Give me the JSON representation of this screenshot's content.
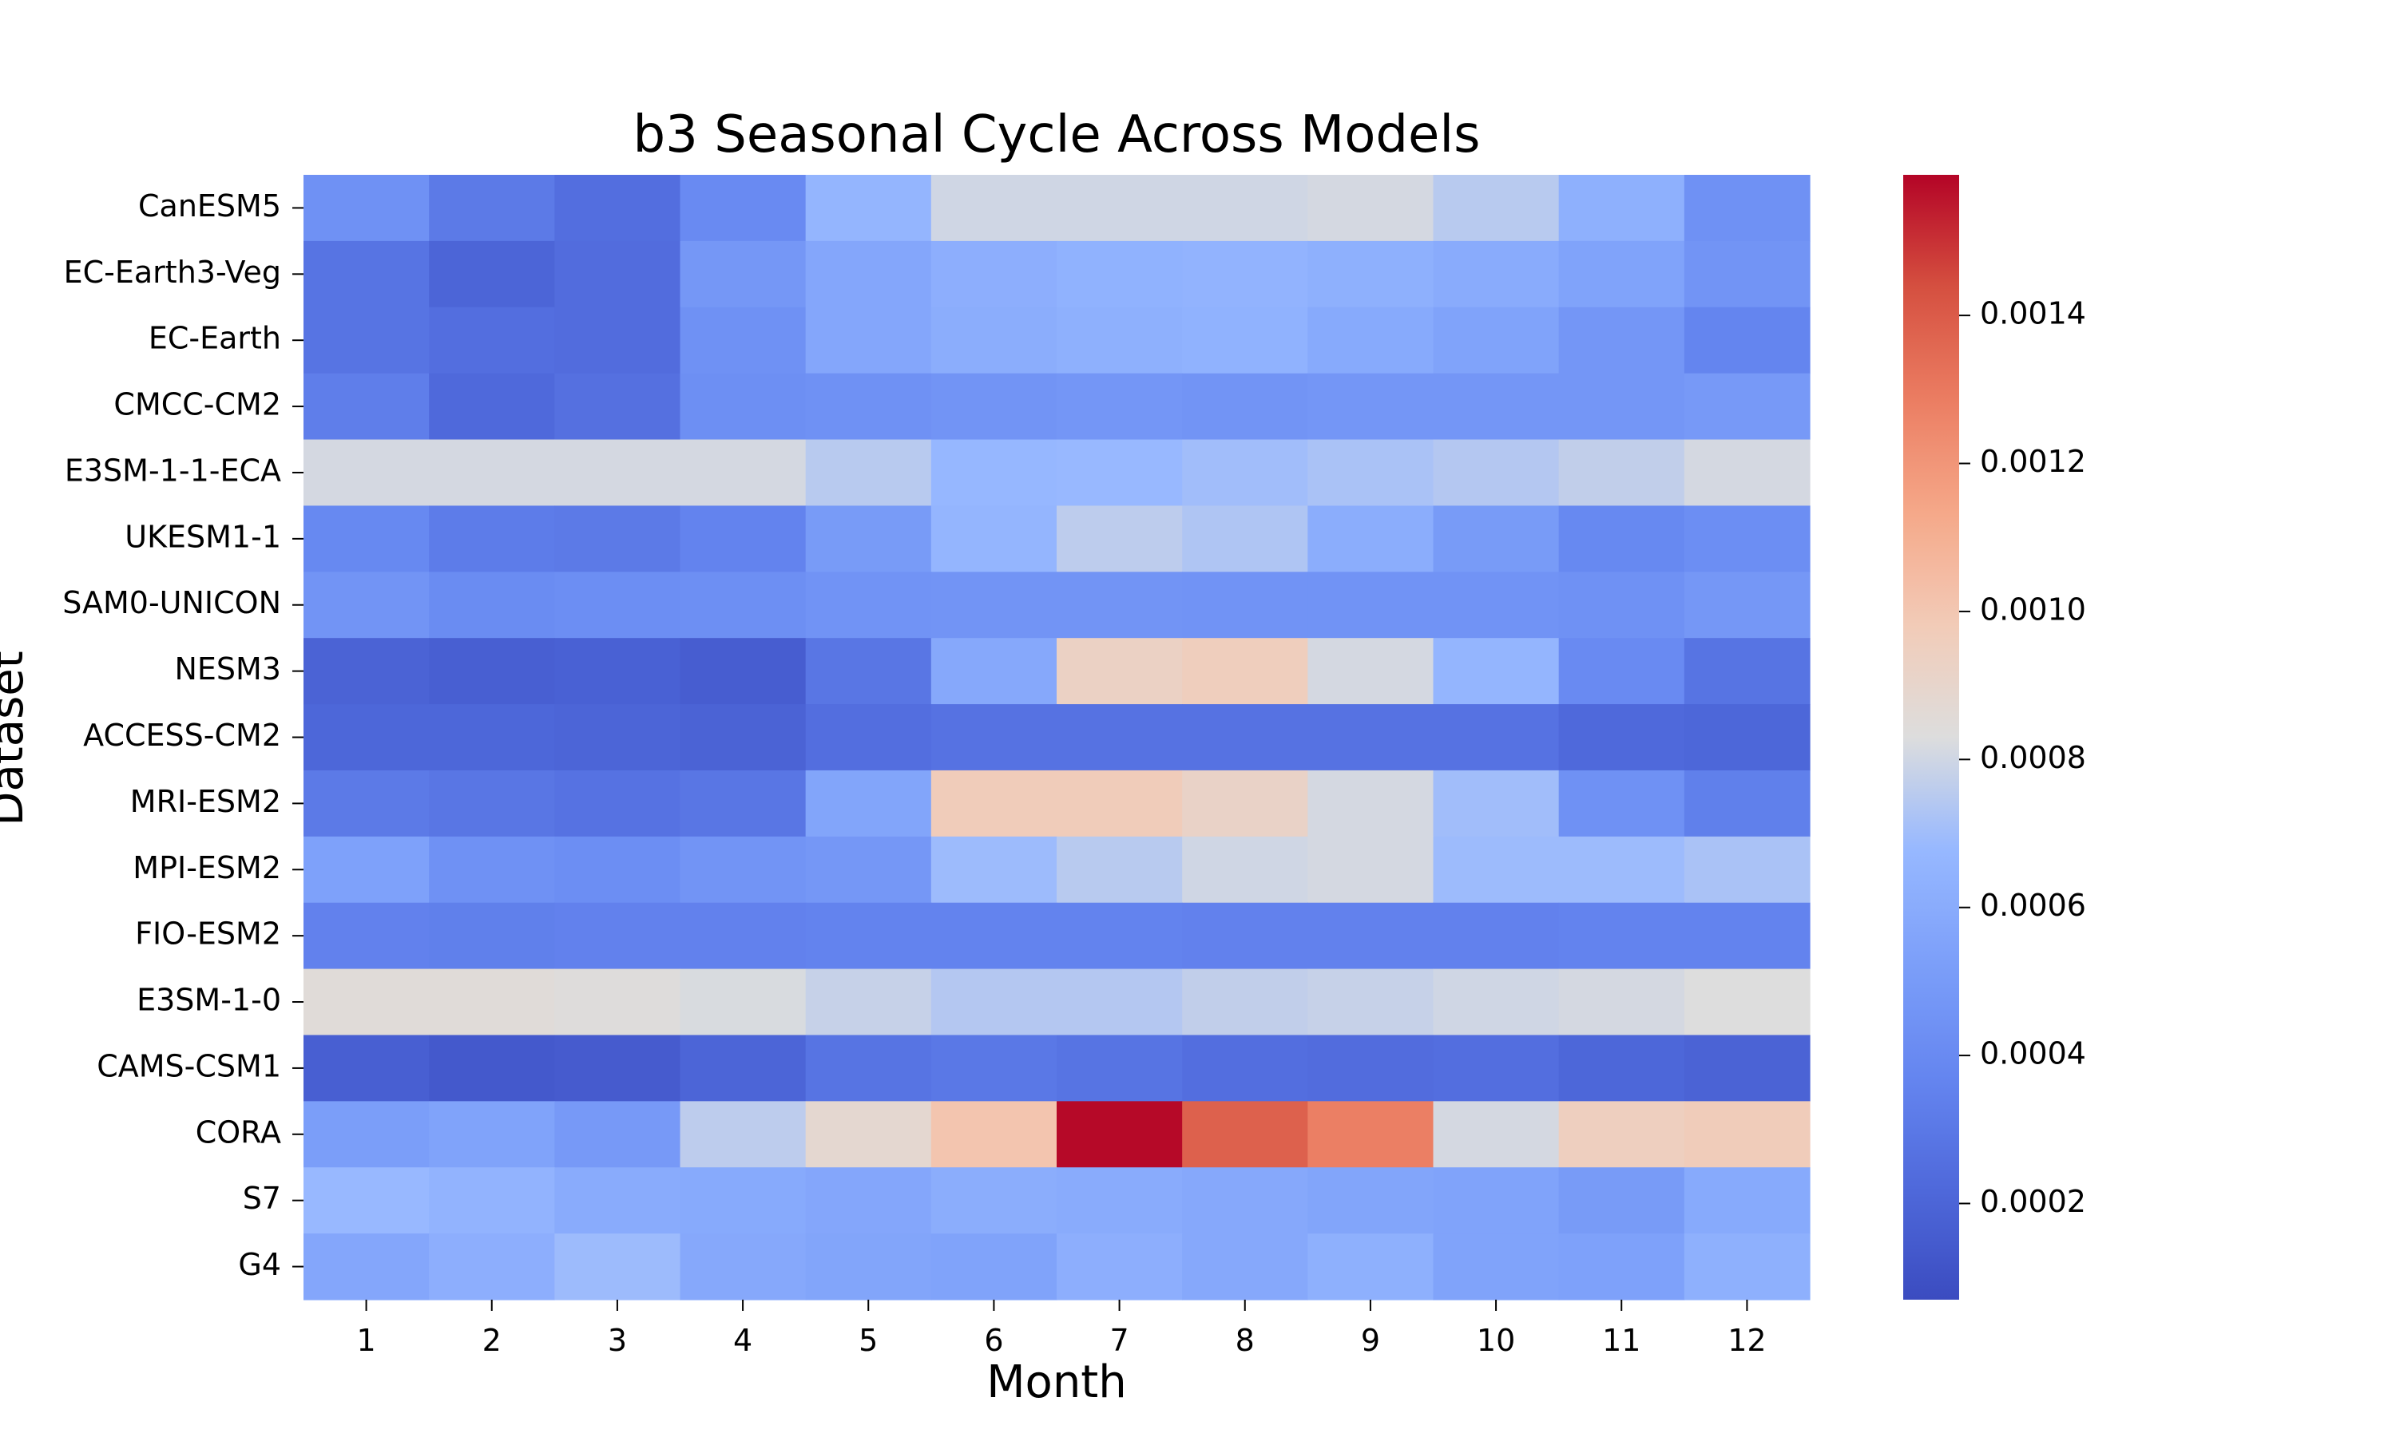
{
  "chart_data": {
    "type": "heatmap",
    "title": "b3 Seasonal Cycle Across Models",
    "xlabel": "Month",
    "ylabel": "Dataset",
    "x_categories": [
      "1",
      "2",
      "3",
      "4",
      "5",
      "6",
      "7",
      "8",
      "9",
      "10",
      "11",
      "12"
    ],
    "y_categories": [
      "CanESM5",
      "EC-Earth3-Veg",
      "EC-Earth",
      "CMCC-CM2",
      "E3SM-1-1-ECA",
      "UKESM1-1",
      "SAM0-UNICON",
      "NESM3",
      "ACCESS-CM2",
      "MRI-ESM2",
      "MPI-ESM2",
      "FIO-ESM2",
      "E3SM-1-0",
      "CAMS-CSM1",
      "CORA",
      "S7",
      "G4"
    ],
    "values": [
      [
        0.00044,
        0.00031,
        0.00025,
        0.0004,
        0.00066,
        0.0008,
        0.0008,
        0.0008,
        0.00081,
        0.00075,
        0.00063,
        0.00044
      ],
      [
        0.00028,
        0.0002,
        0.00024,
        0.00048,
        0.00057,
        0.00062,
        0.00064,
        0.00065,
        0.00063,
        0.0006,
        0.00055,
        0.00046
      ],
      [
        0.00028,
        0.00025,
        0.00024,
        0.00044,
        0.00057,
        0.00061,
        0.00063,
        0.00064,
        0.00059,
        0.00055,
        0.00047,
        0.00037
      ],
      [
        0.00033,
        0.00022,
        0.00026,
        0.00043,
        0.00044,
        0.00046,
        0.00047,
        0.00046,
        0.00047,
        0.00047,
        0.00047,
        0.00049
      ],
      [
        0.00081,
        0.00081,
        0.00081,
        0.00081,
        0.00075,
        0.00067,
        0.00068,
        0.0007,
        0.00072,
        0.00074,
        0.00077,
        0.00081
      ],
      [
        0.00039,
        0.00032,
        0.00031,
        0.00036,
        0.0005,
        0.00066,
        0.00076,
        0.00073,
        0.00061,
        0.0005,
        0.00039,
        0.00042
      ],
      [
        0.00046,
        0.00041,
        0.00042,
        0.00043,
        0.00045,
        0.00046,
        0.00046,
        0.00045,
        0.00045,
        0.00045,
        0.00044,
        0.00048
      ],
      [
        0.00019,
        0.00017,
        0.00018,
        0.00016,
        0.00029,
        0.00058,
        0.00093,
        0.00096,
        0.00081,
        0.00066,
        0.0004,
        0.00028
      ],
      [
        0.00021,
        0.00021,
        0.0002,
        0.00019,
        0.00025,
        0.00027,
        0.00027,
        0.00027,
        0.00027,
        0.00027,
        0.00022,
        0.00021
      ],
      [
        0.00031,
        0.00029,
        0.00027,
        0.00029,
        0.00056,
        0.00097,
        0.00097,
        0.00092,
        0.00081,
        0.0007,
        0.00044,
        0.00034
      ],
      [
        0.00054,
        0.00044,
        0.00042,
        0.00046,
        0.00048,
        0.00069,
        0.00075,
        0.0008,
        0.00081,
        0.00069,
        0.00069,
        0.00072
      ],
      [
        0.00035,
        0.00034,
        0.00035,
        0.00035,
        0.00036,
        0.00036,
        0.00036,
        0.00035,
        0.00035,
        0.00035,
        0.00036,
        0.00036
      ],
      [
        0.00085,
        0.00085,
        0.00084,
        0.00082,
        0.00078,
        0.00074,
        0.00074,
        0.00077,
        0.00078,
        0.0008,
        0.00081,
        0.00083
      ],
      [
        0.00017,
        0.00014,
        0.00015,
        0.0002,
        0.00028,
        0.0003,
        0.00028,
        0.00025,
        0.00024,
        0.00025,
        0.00021,
        0.00019
      ],
      [
        0.00052,
        0.00055,
        0.00049,
        0.00076,
        0.00088,
        0.00101,
        0.00158,
        0.00138,
        0.00128,
        0.00081,
        0.00095,
        0.00097
      ],
      [
        0.00068,
        0.00065,
        0.0006,
        0.00059,
        0.00057,
        0.00061,
        0.0006,
        0.00058,
        0.00056,
        0.00055,
        0.0005,
        0.00059
      ],
      [
        0.00057,
        0.00062,
        0.00069,
        0.00058,
        0.00056,
        0.00055,
        0.00062,
        0.00058,
        0.00063,
        0.00055,
        0.00054,
        0.00063
      ]
    ],
    "colormap": "coolwarm",
    "vmin": 7e-05,
    "vmax": 0.00159,
    "colorbar_ticks": [
      0.0002,
      0.0004,
      0.0006,
      0.0008,
      0.001,
      0.0012,
      0.0014
    ],
    "colorbar_tick_labels": [
      "0.0002",
      "0.0004",
      "0.0006",
      "0.0008",
      "0.0010",
      "0.0012",
      "0.0014"
    ]
  }
}
